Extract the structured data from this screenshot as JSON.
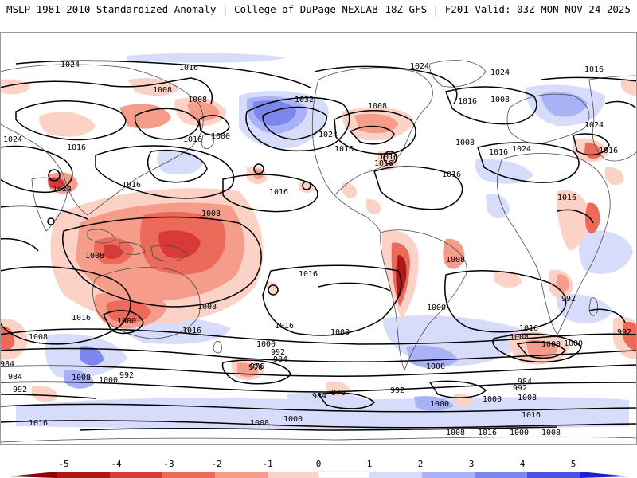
{
  "header": {
    "left": "MSLP 1981-2010 Standardized Anomaly | College of DuPage NEXLAB",
    "right": "18Z GFS | F201 Valid: 03Z MON NOV 24 2025"
  },
  "colors": {
    "neg5": "#b01818",
    "neg4": "#d83a3a",
    "neg3": "#ec6a5a",
    "neg2": "#f59c8a",
    "neg1": "#fcd2c6",
    "zero": "#ffffff",
    "pos1": "#d8dcfb",
    "pos2": "#aab2f6",
    "pos3": "#7c86ef",
    "pos4": "#4a52e2",
    "pos5": "#1a20d6",
    "contour": "#000000",
    "land": "#555555"
  },
  "isobar_labels": [
    {
      "id": "l01",
      "text": "1024"
    },
    {
      "id": "l02",
      "text": "1016"
    },
    {
      "id": "l03",
      "text": "1008"
    },
    {
      "id": "l04",
      "text": "1008"
    },
    {
      "id": "l05",
      "text": "1000"
    },
    {
      "id": "l06",
      "text": "1016"
    },
    {
      "id": "l07",
      "text": "1024"
    },
    {
      "id": "l08",
      "text": "1016"
    },
    {
      "id": "l09",
      "text": "1024"
    },
    {
      "id": "l10",
      "text": "1016"
    },
    {
      "id": "l11",
      "text": "1032"
    },
    {
      "id": "l12",
      "text": "1024"
    },
    {
      "id": "l13",
      "text": "1016"
    },
    {
      "id": "l14",
      "text": "1016"
    },
    {
      "id": "l15",
      "text": "1016"
    },
    {
      "id": "l16",
      "text": "1024"
    },
    {
      "id": "l17",
      "text": "1008"
    },
    {
      "id": "l18",
      "text": "1024"
    },
    {
      "id": "l19",
      "text": "1016"
    },
    {
      "id": "l20",
      "text": "1008"
    },
    {
      "id": "l21",
      "text": "1016"
    },
    {
      "id": "l22",
      "text": "1024"
    },
    {
      "id": "l23",
      "text": "1016"
    },
    {
      "id": "l24",
      "text": "1008"
    },
    {
      "id": "l25",
      "text": "1024"
    },
    {
      "id": "l26",
      "text": "1016"
    },
    {
      "id": "l27",
      "text": "1016"
    },
    {
      "id": "l28",
      "text": "1016"
    },
    {
      "id": "l29",
      "text": "1008"
    },
    {
      "id": "l30",
      "text": "1016"
    },
    {
      "id": "l31",
      "text": "1008"
    },
    {
      "id": "l32",
      "text": "1000"
    },
    {
      "id": "l33",
      "text": "1008"
    },
    {
      "id": "l34",
      "text": "1016"
    },
    {
      "id": "l35",
      "text": "1016"
    },
    {
      "id": "l36",
      "text": "1016"
    },
    {
      "id": "l37",
      "text": "1008"
    },
    {
      "id": "l38",
      "text": "1000"
    },
    {
      "id": "l39",
      "text": "992"
    },
    {
      "id": "l40",
      "text": "1016"
    },
    {
      "id": "l41",
      "text": "1008"
    },
    {
      "id": "l42",
      "text": "1008"
    },
    {
      "id": "l43",
      "text": "1000"
    },
    {
      "id": "l44",
      "text": "992"
    },
    {
      "id": "l45",
      "text": "984"
    },
    {
      "id": "l46",
      "text": "976"
    },
    {
      "id": "l47",
      "text": "1016"
    },
    {
      "id": "l48",
      "text": "1008"
    },
    {
      "id": "l49",
      "text": "1016"
    },
    {
      "id": "l50",
      "text": "1000"
    },
    {
      "id": "l51",
      "text": "984"
    },
    {
      "id": "l52",
      "text": "992"
    },
    {
      "id": "l53",
      "text": "1000"
    },
    {
      "id": "l54",
      "text": "1008"
    },
    {
      "id": "l55",
      "text": "984"
    },
    {
      "id": "l56",
      "text": "992"
    },
    {
      "id": "l57",
      "text": "1000"
    },
    {
      "id": "l58",
      "text": "992"
    },
    {
      "id": "l59",
      "text": "1008"
    },
    {
      "id": "l60",
      "text": "1000"
    },
    {
      "id": "l61",
      "text": "992"
    },
    {
      "id": "l62",
      "text": "976"
    },
    {
      "id": "l63",
      "text": "984"
    },
    {
      "id": "l64",
      "text": "1016"
    },
    {
      "id": "l65",
      "text": "1008"
    },
    {
      "id": "l66",
      "text": "1000"
    },
    {
      "id": "l67",
      "text": "984"
    },
    {
      "id": "l68",
      "text": "976"
    },
    {
      "id": "l69",
      "text": "992"
    },
    {
      "id": "l70",
      "text": "1000"
    },
    {
      "id": "l71",
      "text": "1000"
    },
    {
      "id": "l72",
      "text": "1008"
    },
    {
      "id": "l73",
      "text": "1016"
    },
    {
      "id": "l74",
      "text": "1000"
    },
    {
      "id": "l75",
      "text": "1008"
    }
  ],
  "colorbar": {
    "ticks": [
      "-5",
      "-4",
      "-3",
      "-2",
      "-1",
      "0",
      "1",
      "2",
      "3",
      "4",
      "5"
    ]
  }
}
